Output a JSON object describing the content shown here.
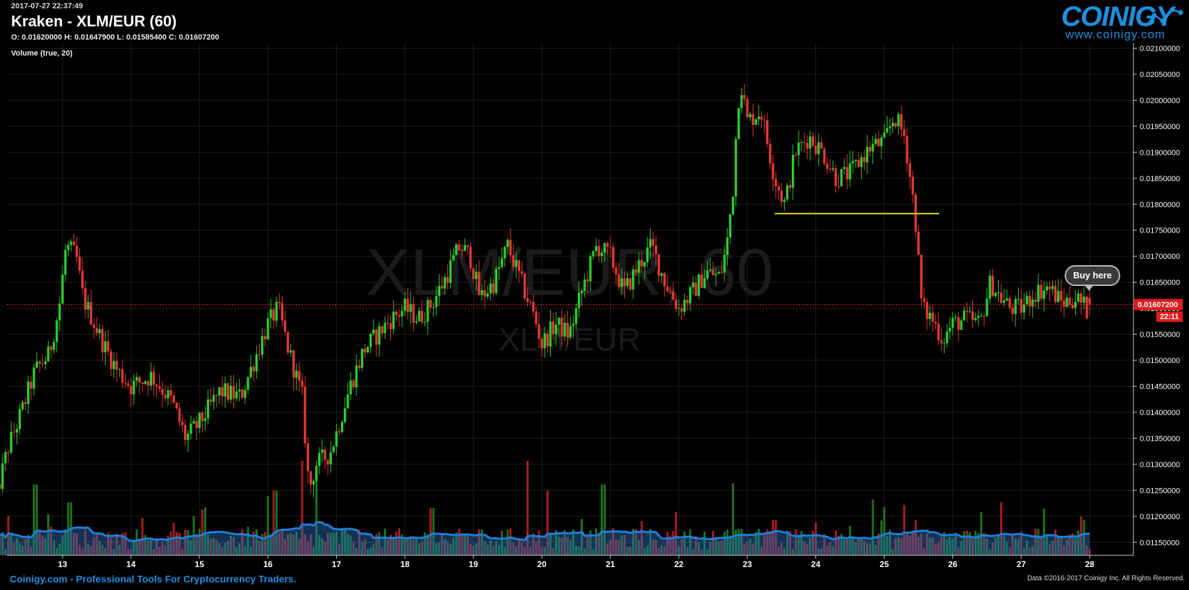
{
  "header": {
    "timestamp": "2017-07-27 22:37:49",
    "title": "Kraken - XLM/EUR (60)",
    "ohlc": "O: 0.01620000 H: 0.01647900 L: 0.01585400 C: 0.01607200",
    "volume_label": "Volume (true, 20)"
  },
  "logo": {
    "word": "COINIGY",
    "url": "www.coinigy.com"
  },
  "watermark": {
    "main": "XLM/EUR, 60",
    "sub": "XLM/EUR"
  },
  "footer": {
    "left": "Coinigy.com - Professional Tools For Cryptocurrency Traders.",
    "right": "Data ©2016-2017 Coinigy Inc. All Rights Reserved."
  },
  "buy_button": {
    "label": "Buy here"
  },
  "colors": {
    "up": "#2ecc2e",
    "down": "#e53935",
    "volume_ma": "#1e7fd8",
    "price_line": "#ff2a2a",
    "hline": "#e5e000",
    "accent": "#1e8fe0"
  },
  "chart_data": {
    "type": "candlestick",
    "x_axis_labels": [
      "13",
      "14",
      "15",
      "16",
      "17",
      "18",
      "19",
      "20",
      "21",
      "22",
      "23",
      "24",
      "25",
      "26",
      "27",
      "28"
    ],
    "y_ticks": [
      "0.02100000",
      "0.02050000",
      "0.02000000",
      "0.01950000",
      "0.01900000",
      "0.01850000",
      "0.01800000",
      "0.01750000",
      "0.01700000",
      "0.01650000",
      "0.01600000",
      "0.01550000",
      "0.01500000",
      "0.01450000",
      "0.01400000",
      "0.01350000",
      "0.01300000",
      "0.01250000",
      "0.01200000",
      "0.01150000"
    ],
    "ylim": [
      0.01125,
      0.0211
    ],
    "last_price": "0.01607200",
    "last_price_value": 0.016072,
    "countdown": "22:11",
    "horizontal_line": {
      "price": 0.01782,
      "from_day": 23.4,
      "to_day": 25.8
    },
    "price_anchors": [
      [
        12.0,
        0.0122
      ],
      [
        12.2,
        0.0133
      ],
      [
        12.4,
        0.014
      ],
      [
        12.6,
        0.0148
      ],
      [
        12.8,
        0.0151
      ],
      [
        12.95,
        0.016
      ],
      [
        13.05,
        0.0172
      ],
      [
        13.2,
        0.017
      ],
      [
        13.3,
        0.0162
      ],
      [
        13.6,
        0.0153
      ],
      [
        13.8,
        0.0148
      ],
      [
        14.0,
        0.0145
      ],
      [
        14.3,
        0.0147
      ],
      [
        14.6,
        0.0142
      ],
      [
        14.8,
        0.0135
      ],
      [
        15.0,
        0.0138
      ],
      [
        15.3,
        0.0144
      ],
      [
        15.6,
        0.0143
      ],
      [
        15.8,
        0.015
      ],
      [
        16.0,
        0.0157
      ],
      [
        16.15,
        0.016
      ],
      [
        16.3,
        0.0152
      ],
      [
        16.5,
        0.0143
      ],
      [
        16.6,
        0.0125
      ],
      [
        16.7,
        0.013
      ],
      [
        16.9,
        0.0132
      ],
      [
        17.0,
        0.0136
      ],
      [
        17.2,
        0.0145
      ],
      [
        17.4,
        0.0152
      ],
      [
        17.6,
        0.0155
      ],
      [
        17.8,
        0.0158
      ],
      [
        18.0,
        0.016
      ],
      [
        18.2,
        0.0158
      ],
      [
        18.4,
        0.0161
      ],
      [
        18.6,
        0.0166
      ],
      [
        18.8,
        0.0172
      ],
      [
        18.95,
        0.017
      ],
      [
        19.1,
        0.0162
      ],
      [
        19.3,
        0.0165
      ],
      [
        19.5,
        0.0172
      ],
      [
        19.7,
        0.0165
      ],
      [
        19.9,
        0.0158
      ],
      [
        20.0,
        0.0153
      ],
      [
        20.2,
        0.0157
      ],
      [
        20.4,
        0.0155
      ],
      [
        20.6,
        0.0164
      ],
      [
        20.8,
        0.0172
      ],
      [
        21.0,
        0.017
      ],
      [
        21.2,
        0.0163
      ],
      [
        21.4,
        0.0168
      ],
      [
        21.6,
        0.0172
      ],
      [
        21.8,
        0.0165
      ],
      [
        22.0,
        0.016
      ],
      [
        22.2,
        0.0163
      ],
      [
        22.4,
        0.0167
      ],
      [
        22.6,
        0.0166
      ],
      [
        22.7,
        0.0172
      ],
      [
        22.8,
        0.0184
      ],
      [
        22.85,
        0.0197
      ],
      [
        22.9,
        0.0204
      ],
      [
        23.0,
        0.0196
      ],
      [
        23.2,
        0.0198
      ],
      [
        23.4,
        0.0185
      ],
      [
        23.55,
        0.018
      ],
      [
        23.7,
        0.019
      ],
      [
        23.9,
        0.0193
      ],
      [
        24.1,
        0.019
      ],
      [
        24.3,
        0.0185
      ],
      [
        24.5,
        0.0186
      ],
      [
        24.8,
        0.0191
      ],
      [
        25.0,
        0.0192
      ],
      [
        25.15,
        0.0197
      ],
      [
        25.3,
        0.0193
      ],
      [
        25.45,
        0.0178
      ],
      [
        25.55,
        0.016
      ],
      [
        25.7,
        0.0158
      ],
      [
        25.85,
        0.0154
      ],
      [
        26.0,
        0.0157
      ],
      [
        26.2,
        0.0158
      ],
      [
        26.4,
        0.0157
      ],
      [
        26.55,
        0.0165
      ],
      [
        26.7,
        0.0162
      ],
      [
        26.85,
        0.016
      ],
      [
        27.0,
        0.016
      ],
      [
        27.2,
        0.0163
      ],
      [
        27.4,
        0.0164
      ],
      [
        27.6,
        0.0161
      ],
      [
        27.8,
        0.0162
      ],
      [
        27.95,
        0.016
      ],
      [
        28.0,
        0.0158
      ]
    ],
    "volume_spikes": [
      [
        12.6,
        0.6
      ],
      [
        12.8,
        0.35
      ],
      [
        13.1,
        0.45
      ],
      [
        15.8,
        0.2
      ],
      [
        16.0,
        0.5
      ],
      [
        16.1,
        0.55
      ],
      [
        16.5,
        0.8
      ],
      [
        16.7,
        0.7
      ],
      [
        18.4,
        0.4
      ],
      [
        19.8,
        0.8
      ],
      [
        20.1,
        0.55
      ],
      [
        20.9,
        0.6
      ],
      [
        22.8,
        0.45
      ],
      [
        23.4,
        0.3
      ],
      [
        24.5,
        0.25
      ],
      [
        25.45,
        0.3
      ],
      [
        26.7,
        0.45
      ],
      [
        27.9,
        0.3
      ]
    ]
  }
}
